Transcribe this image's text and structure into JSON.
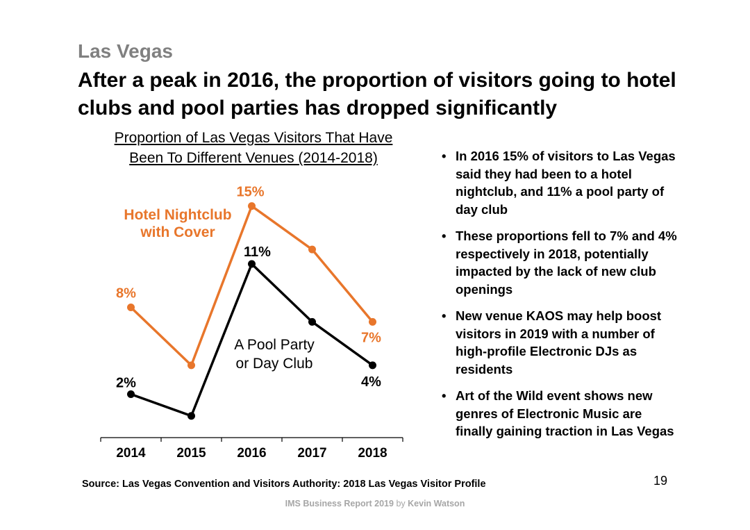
{
  "slide": {
    "supertitle": "Las Vegas",
    "headline": "After a peak in 2016, the proportion of visitors going to hotel clubs and pool parties has dropped significantly",
    "bullets": [
      "In 2016 15% of visitors to Las Vegas said they had been to a hotel nightclub, and 11% a pool party of day club",
      "These proportions fell to 7% and 4% respectively in 2018, potentially impacted by the lack of new club openings",
      "New venue KAOS may help boost visitors in 2019 with a number of high-profile Electronic DJs as residents",
      "Art of the Wild event shows new genres of Electronic Music are finally gaining traction in Las Vegas"
    ],
    "source": "Source: Las Vegas Convention and Visitors Authority: 2018 Las Vegas Visitor Profile",
    "page_number": "19",
    "footer_brand": "IMS Business Report 2019",
    "footer_by": "by",
    "footer_author": "Kevin Watson"
  },
  "colors": {
    "orange": "#E8762B",
    "black": "#000000",
    "gray": "#808080"
  },
  "chart_data": {
    "type": "line",
    "title": "Proportion of Las Vegas Visitors That Have Been To Different Venues (2014-2018)",
    "title_lines": [
      "Proportion of Las Vegas Visitors That Have",
      "Been To Different Venues (2014-2018)"
    ],
    "categories": [
      "2014",
      "2015",
      "2016",
      "2017",
      "2018"
    ],
    "series": [
      {
        "name": "Hotel Nightclub with Cover",
        "name_lines": [
          "Hotel Nightclub",
          "with Cover"
        ],
        "color": "#E8762B",
        "values": [
          8,
          4,
          15,
          12,
          7
        ],
        "data_labels": [
          {
            "index": 0,
            "text": "8%"
          },
          {
            "index": 2,
            "text": "15%"
          },
          {
            "index": 4,
            "text": "7%"
          }
        ]
      },
      {
        "name": "A Pool Party or Day Club",
        "name_lines": [
          "A Pool Party",
          "or Day Club"
        ],
        "color": "#000000",
        "values": [
          2,
          0.5,
          11,
          7,
          4
        ],
        "data_labels": [
          {
            "index": 0,
            "text": "2%"
          },
          {
            "index": 2,
            "text": "11%"
          },
          {
            "index": 4,
            "text": "4%"
          }
        ]
      }
    ],
    "ylim": [
      -1,
      17
    ],
    "xlabel": "",
    "ylabel": "",
    "grid": false,
    "legend": "inline"
  }
}
